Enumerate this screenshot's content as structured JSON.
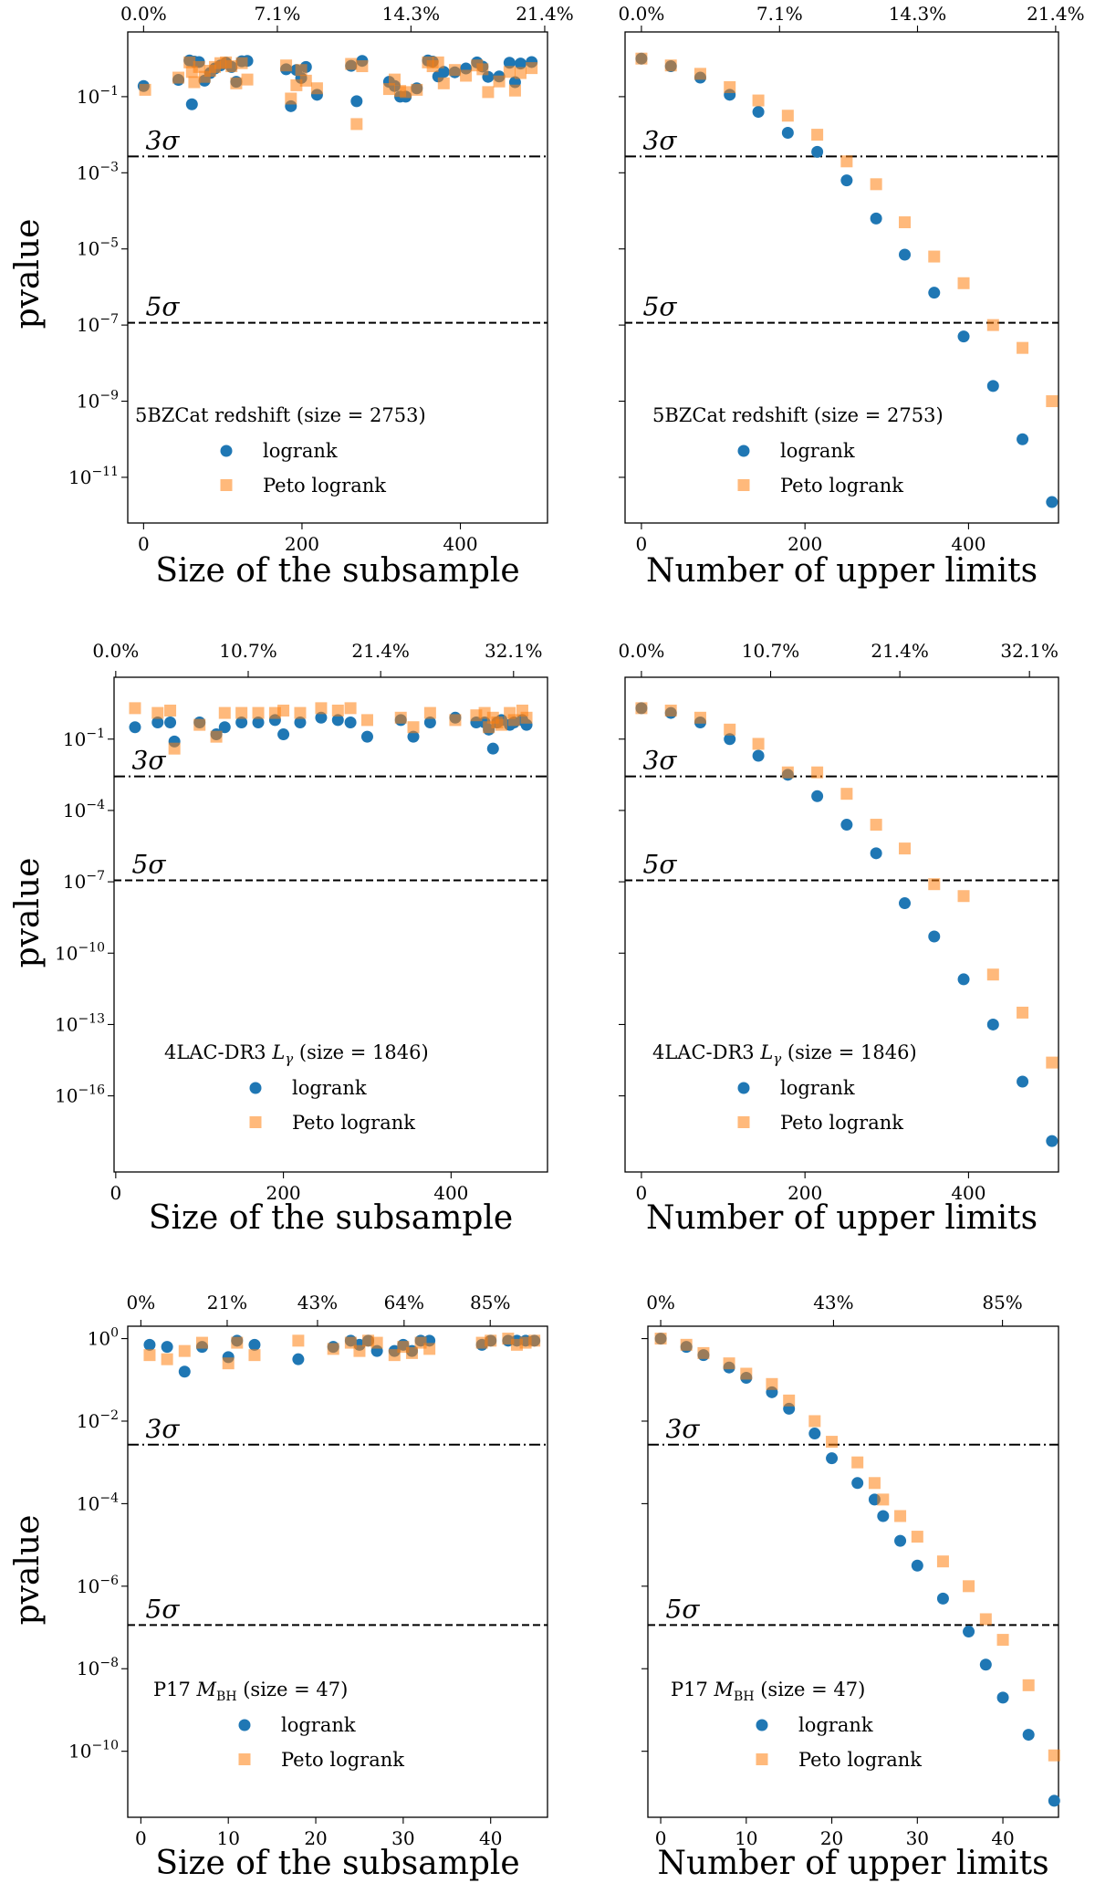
{
  "chart_data": [
    {
      "type": "scatter",
      "panel": "row1-left",
      "title": "5BZCat redshift (size = 2753)",
      "xlabel": "Size of the subsample",
      "ylabel": "pvalue",
      "xlim": [
        -20,
        510
      ],
      "xticks": [
        0,
        200,
        400
      ],
      "ylim_log10": [
        -12.2,
        0.7
      ],
      "yticks_log10": [
        -1,
        -3,
        -5,
        -7,
        -9,
        -11
      ],
      "top_ticks": {
        "values": [
          0,
          168.9,
          337.6,
          506.5
        ],
        "labels": [
          "0.0%",
          "7.1%",
          "14.3%",
          "21.4%"
        ]
      },
      "lines": [
        {
          "label": "3σ",
          "log10": -2.57,
          "style": "dashdot"
        },
        {
          "label": "5σ",
          "log10": -6.94,
          "style": "dashed"
        }
      ],
      "series": [
        {
          "name": "logrank",
          "x": [
            0,
            44,
            58,
            61,
            64,
            70,
            77,
            84,
            90,
            97,
            104,
            111,
            117,
            124,
            131,
            180,
            186,
            193,
            199,
            205,
            219,
            262,
            269,
            276,
            310,
            317,
            324,
            331,
            345,
            359,
            365,
            372,
            379,
            393,
            407,
            421,
            428,
            435,
            449,
            462,
            469,
            476,
            490
          ],
          "y_log10": [
            -0.72,
            -0.56,
            -0.05,
            -1.2,
            -0.08,
            -0.09,
            -0.58,
            -0.38,
            -0.26,
            -0.18,
            -0.11,
            -0.22,
            -0.61,
            -0.07,
            -0.06,
            -0.28,
            -1.25,
            -0.3,
            -0.51,
            -0.22,
            -0.95,
            -0.19,
            -1.12,
            -0.06,
            -0.61,
            -0.72,
            -1.0,
            -1.0,
            -0.78,
            -0.05,
            -0.08,
            -0.47,
            -0.35,
            -0.36,
            -0.26,
            -0.1,
            -0.21,
            -0.48,
            -0.47,
            -0.11,
            -0.62,
            -0.13,
            -0.09
          ]
        },
        {
          "name": "Peto logrank",
          "x": [
            2,
            44,
            58,
            61,
            64,
            70,
            77,
            84,
            90,
            97,
            104,
            111,
            117,
            124,
            131,
            180,
            186,
            193,
            199,
            205,
            219,
            262,
            269,
            276,
            310,
            317,
            324,
            331,
            345,
            359,
            365,
            372,
            379,
            393,
            407,
            421,
            428,
            435,
            449,
            462,
            469,
            476,
            490
          ],
          "y_log10": [
            -0.82,
            -0.5,
            -0.1,
            -0.35,
            -0.62,
            -0.22,
            -0.48,
            -0.32,
            -0.22,
            -0.12,
            -0.1,
            -0.2,
            -0.65,
            -0.12,
            -0.55,
            -0.18,
            -1.05,
            -0.7,
            -0.3,
            -0.58,
            -0.78,
            -0.14,
            -1.72,
            -0.2,
            -0.8,
            -0.55,
            -0.85,
            -0.88,
            -0.82,
            -0.1,
            -0.2,
            -0.1,
            -0.65,
            -0.3,
            -0.45,
            -0.18,
            -0.28,
            -0.88,
            -0.6,
            -0.35,
            -0.84,
            -0.38,
            -0.25
          ]
        }
      ]
    },
    {
      "type": "scatter",
      "panel": "row1-right",
      "title": "5BZCat redshift (size = 2753)",
      "xlabel": "Number of upper limits",
      "ylabel": "",
      "xlim": [
        -20,
        510
      ],
      "xticks": [
        0,
        200,
        400
      ],
      "ylim_log10": [
        -12.2,
        0.7
      ],
      "yticks_log10": [],
      "top_ticks": {
        "values": [
          0,
          168.9,
          337.6,
          506.5
        ],
        "labels": [
          "0.0%",
          "7.1%",
          "14.3%",
          "21.4%"
        ]
      },
      "lines": [
        {
          "label": "3σ",
          "log10": -2.57,
          "style": "dashdot"
        },
        {
          "label": "5σ",
          "log10": -6.94,
          "style": "dashed"
        }
      ],
      "series": [
        {
          "name": "logrank",
          "x": [
            0,
            36,
            72,
            108,
            143,
            179,
            215,
            251,
            287,
            322,
            358,
            394,
            430,
            466,
            502
          ],
          "y_log10": [
            0,
            -0.2,
            -0.5,
            -0.95,
            -1.4,
            -1.95,
            -2.45,
            -3.2,
            -4.2,
            -5.15,
            -6.15,
            -7.3,
            -8.6,
            -10.0,
            -11.65
          ]
        },
        {
          "name": "Peto logrank",
          "x": [
            0,
            36,
            72,
            108,
            143,
            179,
            215,
            251,
            287,
            322,
            358,
            394,
            430,
            466,
            502
          ],
          "y_log10": [
            0,
            -0.18,
            -0.4,
            -0.75,
            -1.1,
            -1.5,
            -2.0,
            -2.7,
            -3.3,
            -4.3,
            -5.2,
            -5.9,
            -7.0,
            -7.6,
            -9.0
          ]
        }
      ]
    },
    {
      "type": "scatter",
      "panel": "row2-left",
      "title": "4LAC-DR3 Lγ (size = 1846)",
      "xlabel": "Size of the subsample",
      "ylabel": "pvalue",
      "xlim": [
        -2,
        515
      ],
      "xticks": [
        0,
        200,
        400
      ],
      "ylim_log10": [
        -19.2,
        1.6
      ],
      "yticks_log10": [
        -1,
        -4,
        -7,
        -10,
        -13,
        -16
      ],
      "top_ticks": {
        "values": [
          0,
          158.0,
          316.0,
          474.5
        ],
        "labels": [
          "0.0%",
          "10.7%",
          "21.4%",
          "32.1%"
        ]
      },
      "lines": [
        {
          "label": "3σ",
          "log10": -2.57,
          "style": "dashdot"
        },
        {
          "label": "5σ",
          "log10": -6.94,
          "style": "dashed"
        }
      ],
      "series": [
        {
          "name": "logrank",
          "x": [
            23,
            50,
            65,
            70,
            100,
            120,
            130,
            150,
            170,
            190,
            200,
            220,
            245,
            265,
            280,
            300,
            340,
            355,
            375,
            405,
            430,
            440,
            445,
            450,
            455,
            460,
            470,
            475,
            485,
            490
          ],
          "y_log10": [
            -0.5,
            -0.3,
            -0.3,
            -1.1,
            -0.3,
            -0.8,
            -0.5,
            -0.3,
            -0.3,
            -0.2,
            -0.8,
            -0.3,
            -0.1,
            -0.2,
            -0.3,
            -0.9,
            -0.2,
            -0.9,
            -0.3,
            -0.1,
            -0.3,
            -0.3,
            -0.6,
            -1.4,
            -0.3,
            -0.2,
            -0.4,
            -0.3,
            -0.2,
            -0.4
          ]
        },
        {
          "name": "Peto logrank",
          "x": [
            23,
            50,
            65,
            70,
            100,
            120,
            130,
            150,
            170,
            190,
            200,
            220,
            245,
            265,
            280,
            300,
            340,
            355,
            375,
            405,
            430,
            440,
            445,
            450,
            455,
            460,
            470,
            475,
            485,
            490
          ],
          "y_log10": [
            0.3,
            0.1,
            0.2,
            -1.4,
            -0.4,
            -0.9,
            0.1,
            0.1,
            0.1,
            0.1,
            0.2,
            0.1,
            0.3,
            0.2,
            0.3,
            -0.2,
            -0.1,
            -0.5,
            0.1,
            -0.2,
            0.0,
            0.1,
            -0.5,
            -0.1,
            -0.3,
            -0.4,
            0.1,
            -0.2,
            0.2,
            -0.1
          ]
        }
      ]
    },
    {
      "type": "scatter",
      "panel": "row2-right",
      "title": "4LAC-DR3 Lγ (size = 1846)",
      "xlabel": "Number of upper limits",
      "ylabel": "",
      "xlim": [
        -20,
        510
      ],
      "xticks": [
        0,
        200,
        400
      ],
      "ylim_log10": [
        -19.2,
        1.6
      ],
      "yticks_log10": [],
      "top_ticks": {
        "values": [
          0,
          158.0,
          316.0,
          474.5
        ],
        "labels": [
          "0.0%",
          "10.7%",
          "21.4%",
          "32.1%"
        ]
      },
      "lines": [
        {
          "label": "3σ",
          "log10": -2.57,
          "style": "dashdot"
        },
        {
          "label": "5σ",
          "log10": -6.94,
          "style": "dashed"
        }
      ],
      "series": [
        {
          "name": "logrank",
          "x": [
            0,
            36,
            72,
            108,
            143,
            179,
            215,
            251,
            287,
            322,
            358,
            394,
            430,
            466,
            502
          ],
          "y_log10": [
            0.3,
            0.1,
            -0.3,
            -1.0,
            -1.7,
            -2.5,
            -3.4,
            -4.6,
            -5.8,
            -7.9,
            -9.3,
            -11.1,
            -13.0,
            -15.4,
            -17.9
          ]
        },
        {
          "name": "Peto logrank",
          "x": [
            0,
            36,
            72,
            108,
            143,
            179,
            215,
            251,
            287,
            322,
            358,
            394,
            430,
            466,
            502
          ],
          "y_log10": [
            0.3,
            0.2,
            -0.1,
            -0.6,
            -1.2,
            -2.4,
            -2.4,
            -3.3,
            -4.6,
            -5.6,
            -7.1,
            -7.6,
            -10.9,
            -12.5,
            -14.6
          ]
        }
      ]
    },
    {
      "type": "scatter",
      "panel": "row3-left",
      "title": "P17 M_BH (size = 47)",
      "xlabel": "Size of the subsample",
      "ylabel": "pvalue",
      "xlim": [
        -1.5,
        46.5
      ],
      "xticks": [
        0,
        10,
        20,
        30,
        40
      ],
      "ylim_log10": [
        -11.6,
        0.3
      ],
      "yticks_log10": [
        0,
        -2,
        -4,
        -6,
        -8,
        -10
      ],
      "top_ticks": {
        "values": [
          0,
          9.87,
          20.2,
          30.1,
          39.95
        ],
        "labels": [
          "0%",
          "21%",
          "43%",
          "64%",
          "85%"
        ]
      },
      "lines": [
        {
          "label": "3σ",
          "log10": -2.57,
          "style": "dashdot"
        },
        {
          "label": "5σ",
          "log10": -6.94,
          "style": "dashed"
        }
      ],
      "series": [
        {
          "name": "logrank",
          "x": [
            1,
            3,
            5,
            7,
            10,
            11,
            13,
            18,
            22,
            24,
            25,
            26,
            27,
            29,
            30,
            31,
            32,
            33,
            39,
            40,
            42,
            43,
            44,
            45
          ],
          "y_log10": [
            -0.15,
            -0.2,
            -0.8,
            -0.2,
            -0.45,
            -0.05,
            -0.15,
            -0.5,
            -0.2,
            -0.05,
            -0.15,
            -0.05,
            -0.3,
            -0.3,
            -0.15,
            -0.3,
            -0.05,
            -0.05,
            -0.15,
            -0.05,
            -0.05,
            -0.05,
            -0.05,
            -0.05
          ]
        },
        {
          "name": "Peto logrank",
          "x": [
            1,
            3,
            5,
            7,
            10,
            11,
            13,
            18,
            22,
            24,
            25,
            26,
            27,
            29,
            30,
            31,
            32,
            33,
            39,
            40,
            42,
            43,
            44,
            45
          ],
          "y_log10": [
            -0.4,
            -0.5,
            -0.3,
            -0.1,
            -0.6,
            -0.1,
            -0.4,
            -0.05,
            -0.25,
            -0.1,
            -0.3,
            -0.05,
            -0.1,
            -0.4,
            -0.2,
            -0.35,
            -0.1,
            -0.25,
            -0.1,
            -0.05,
            0.0,
            -0.15,
            -0.1,
            -0.05
          ]
        }
      ]
    },
    {
      "type": "scatter",
      "panel": "row3-right",
      "title": "P17 M_BH (size = 47)",
      "xlabel": "Number of upper limits",
      "ylabel": "",
      "xlim": [
        -1.5,
        46.5
      ],
      "xticks": [
        0,
        10,
        20,
        30,
        40
      ],
      "ylim_log10": [
        -11.6,
        0.3
      ],
      "yticks_log10": [],
      "top_ticks": {
        "values": [
          0,
          20.2,
          39.95
        ],
        "labels": [
          "0%",
          "43%",
          "85%"
        ]
      },
      "lines": [
        {
          "label": "3σ",
          "log10": -2.57,
          "style": "dashdot"
        },
        {
          "label": "5σ",
          "log10": -6.94,
          "style": "dashed"
        }
      ],
      "series": [
        {
          "name": "logrank",
          "x": [
            0,
            3,
            5,
            8,
            10,
            13,
            15,
            18,
            20,
            23,
            25,
            26,
            28,
            30,
            33,
            36,
            38,
            40,
            43,
            46
          ],
          "y_log10": [
            0,
            -0.2,
            -0.4,
            -0.7,
            -0.95,
            -1.3,
            -1.7,
            -2.3,
            -2.9,
            -3.5,
            -3.9,
            -4.3,
            -4.9,
            -5.5,
            -6.3,
            -7.1,
            -7.9,
            -8.7,
            -9.6,
            -11.2
          ]
        },
        {
          "name": "Peto logrank",
          "x": [
            0,
            3,
            5,
            8,
            10,
            13,
            15,
            18,
            20,
            23,
            25,
            26,
            28,
            30,
            33,
            36,
            38,
            40,
            43,
            46
          ],
          "y_log10": [
            0,
            -0.15,
            -0.35,
            -0.6,
            -0.85,
            -1.1,
            -1.5,
            -2.0,
            -2.5,
            -3.0,
            -3.5,
            -3.9,
            -4.3,
            -4.8,
            -5.4,
            -6.0,
            -6.8,
            -7.3,
            -8.4,
            -10.1
          ]
        }
      ]
    }
  ],
  "colors": {
    "logrank": "#1f77b4",
    "peto": "#ff7f0e",
    "peto_alpha": "0.55",
    "axis": "#000000"
  },
  "legend": {
    "logrank": "logrank",
    "peto": "Peto logrank"
  },
  "sigma_labels": {
    "three": "3σ",
    "five": "5σ"
  }
}
